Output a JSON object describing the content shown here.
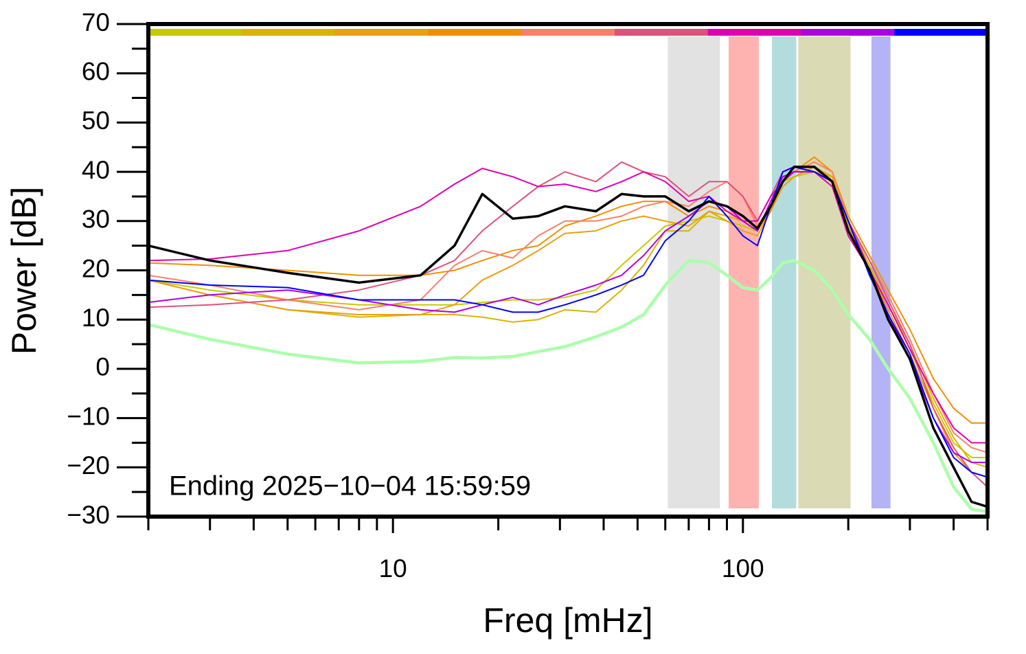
{
  "chart_data": {
    "type": "line",
    "xlabel": "Freq [mHz]",
    "ylabel": "Power [dB]",
    "annotation": "Ending 2025−10−04 15:59:59",
    "log_x": true,
    "xlim": [
      2,
      500
    ],
    "ylim": [
      -30,
      70
    ],
    "xticks": [
      10,
      100
    ],
    "xminorticks": [
      2,
      3,
      4,
      5,
      6,
      7,
      8,
      9,
      20,
      30,
      40,
      50,
      60,
      70,
      80,
      90,
      200,
      300,
      400,
      500
    ],
    "yticks": [
      {
        "value": -30,
        "label": "−30"
      },
      {
        "value": -20,
        "label": "−20"
      },
      {
        "value": -10,
        "label": "−10"
      },
      0,
      10,
      20,
      30,
      40,
      50,
      60,
      70
    ],
    "yminorticks": [
      -25,
      -15,
      -5,
      5,
      15,
      25,
      35,
      45,
      55,
      65
    ],
    "color_bar": [
      "#c8c800",
      "#d8b400",
      "#e8a010",
      "#f09000",
      "#fa7f6a",
      "#e0507a",
      "#e000b0",
      "#b000e0",
      "#0000ff"
    ],
    "bands": [
      {
        "x": [
          61,
          86
        ],
        "color": "#e2e2e2"
      },
      {
        "x": [
          91,
          111
        ],
        "color": "#ffb3b0"
      },
      {
        "x": [
          121,
          142
        ],
        "color": "#b3dcdc"
      },
      {
        "x": [
          144,
          203
        ],
        "color": "#dadab4"
      },
      {
        "x": [
          233,
          264
        ],
        "color": "#b3b3f5"
      }
    ],
    "x": [
      2,
      3,
      5,
      8,
      12,
      15,
      18,
      22,
      26,
      31,
      38,
      45,
      52,
      60,
      70,
      80,
      90,
      100,
      110,
      120,
      130,
      140,
      160,
      180,
      200,
      230,
      260,
      300,
      350,
      400,
      450,
      500
    ],
    "series": [
      {
        "color": "#c8c800",
        "width": 2,
        "values": [
          18,
          16,
          14,
          13,
          13,
          13,
          13.5,
          14,
          14,
          14.5,
          16,
          21,
          25,
          29,
          30,
          31,
          30,
          29,
          28,
          33,
          38,
          39,
          40,
          38,
          29,
          21,
          13,
          4,
          -7,
          -15,
          -18,
          -18
        ]
      },
      {
        "color": "#d8b400",
        "width": 2,
        "values": [
          18,
          15,
          12,
          10.5,
          11,
          11,
          10.5,
          9.5,
          10,
          12,
          11.5,
          16,
          21,
          28,
          28,
          32,
          31,
          30,
          28,
          32,
          38,
          40,
          40,
          39,
          30,
          21,
          13,
          5,
          -6,
          -14,
          -19,
          -20
        ]
      },
      {
        "color": "#e8a010",
        "width": 2,
        "values": [
          18,
          15,
          12,
          11,
          11,
          13,
          18,
          21,
          24,
          27.5,
          28,
          30,
          31,
          30,
          29,
          32,
          30,
          28,
          27,
          32,
          37,
          39,
          41,
          39,
          29,
          20,
          12,
          3,
          -8,
          -17,
          -21,
          -22
        ]
      },
      {
        "color": "#f09000",
        "width": 2,
        "values": [
          21.5,
          21,
          20,
          19,
          19,
          20,
          22,
          24,
          25,
          29,
          31,
          33,
          34,
          34,
          31,
          33,
          32,
          30,
          28,
          32,
          38,
          40,
          43,
          40,
          31,
          23,
          16,
          8,
          -2,
          -8,
          -11,
          -11
        ]
      },
      {
        "color": "#fa7f6a",
        "width": 2,
        "values": [
          19,
          17,
          14,
          12,
          14,
          21,
          24,
          22.5,
          27,
          30,
          30,
          31,
          33,
          34,
          33,
          36,
          38,
          35,
          29,
          33,
          39,
          40,
          42,
          40,
          30,
          22,
          15,
          6,
          -5,
          -13,
          -16,
          -17
        ]
      },
      {
        "color": "#e0507a",
        "width": 2,
        "values": [
          12.5,
          13,
          14,
          16,
          19,
          22,
          28,
          33,
          37,
          40,
          38,
          42,
          40,
          39,
          35,
          38,
          38,
          35,
          30,
          35,
          40,
          41,
          40,
          38,
          30,
          22,
          14,
          5,
          -8,
          -16,
          -21,
          -24
        ]
      },
      {
        "color": "#e000b0",
        "width": 2,
        "values": [
          22,
          22.3,
          24,
          28,
          33,
          37.5,
          40.7,
          39,
          37,
          37.5,
          36,
          38,
          40,
          38,
          34,
          35,
          32,
          30,
          30,
          35,
          38,
          40,
          40,
          37,
          27,
          20,
          13,
          4,
          -5,
          -12,
          -15,
          -15
        ]
      },
      {
        "color": "#b000e0",
        "width": 2,
        "values": [
          13.5,
          15,
          16,
          14,
          12,
          11.5,
          13,
          14.5,
          13,
          15,
          17,
          19,
          23,
          28,
          31,
          34,
          33,
          30,
          28,
          34,
          39,
          40,
          40,
          38,
          30,
          20,
          11,
          2,
          -10,
          -17,
          -19,
          -19
        ]
      },
      {
        "color": "#0000ff",
        "width": 2,
        "values": [
          18,
          17,
          16.5,
          14,
          14,
          14,
          13,
          11.5,
          11.5,
          13,
          15,
          17,
          19,
          26,
          30,
          35,
          31,
          27,
          25,
          33,
          40,
          41,
          40,
          38,
          30,
          19,
          11,
          3,
          -10,
          -18,
          -21,
          -22
        ]
      },
      {
        "color": "#000000",
        "width": 3.5,
        "values": [
          25,
          22,
          19.5,
          17.5,
          19,
          25,
          35.5,
          30.5,
          31,
          33,
          32,
          35.5,
          35,
          35,
          32,
          34,
          33,
          31,
          28.5,
          33,
          38,
          41,
          41,
          38,
          28,
          20,
          10,
          2,
          -12,
          -20,
          -27,
          -28
        ]
      },
      {
        "color": "#aaffaa",
        "width": 4.5,
        "values": [
          9,
          6,
          3,
          1.2,
          1.5,
          2.3,
          2.2,
          2.5,
          3.5,
          4.5,
          6.5,
          8.5,
          11,
          17,
          22,
          21.5,
          19,
          16.5,
          16,
          18.5,
          21.5,
          22,
          20,
          16,
          11,
          6,
          0,
          -6,
          -15,
          -24,
          -28.5,
          -29
        ]
      }
    ]
  }
}
